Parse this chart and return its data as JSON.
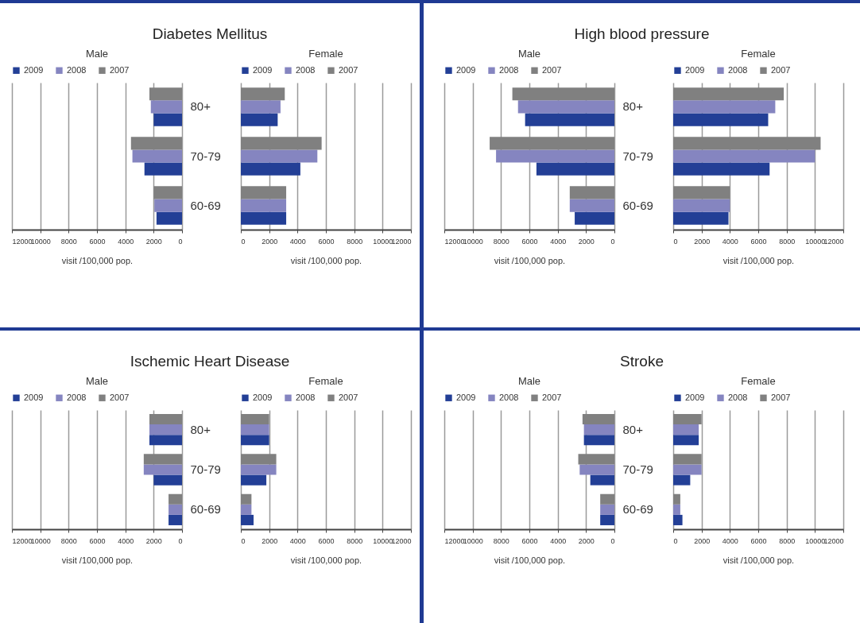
{
  "chart_data": [
    {
      "type": "bar",
      "orientation": "horizontal",
      "title": "Diabetes Mellitus",
      "subtitle": "Male",
      "xlabel": "visit /100,000 pop.",
      "categories": [
        "80+",
        "70-79",
        "60-69"
      ],
      "xlim": [
        12000,
        0
      ],
      "xticks": [
        12000,
        10000,
        8000,
        6000,
        4000,
        2000,
        0
      ],
      "grid": "x",
      "legend": "top",
      "series": [
        {
          "name": "2009",
          "color": "#233f96",
          "values": [
            2000,
            2650,
            1800
          ]
        },
        {
          "name": "2008",
          "color": "#8585c0",
          "values": [
            2200,
            3500,
            1950
          ]
        },
        {
          "name": "2007",
          "color": "#808080",
          "values": [
            2300,
            3600,
            2000
          ]
        }
      ]
    },
    {
      "type": "bar",
      "orientation": "horizontal",
      "subtitle": "Female",
      "xlabel": "visit /100,000 pop.",
      "categories": [
        null,
        null,
        null
      ],
      "xlim": [
        0,
        12000
      ],
      "xticks": [
        0,
        2000,
        4000,
        6000,
        8000,
        10000,
        12000
      ],
      "grid": "x",
      "legend": "top",
      "tick_labels": "x",
      "series": [
        {
          "name": "2009",
          "color": "#233f96",
          "values": [
            2600,
            4200,
            3200
          ]
        },
        {
          "name": "2008",
          "color": "#8585c0",
          "values": [
            2800,
            5400,
            3200
          ]
        },
        {
          "name": "2007",
          "color": "#808080",
          "values": [
            3100,
            5700,
            3200
          ]
        }
      ]
    },
    {
      "type": "bar",
      "orientation": "horizontal",
      "title": "High blood pressure",
      "subtitle": "Male",
      "xlabel": "visit /100,000 pop.",
      "categories": [
        "80+",
        "70-79",
        "60-69"
      ],
      "xlim": [
        12000,
        0
      ],
      "xticks": [
        12000,
        10000,
        8000,
        6000,
        4000,
        2000,
        0
      ],
      "grid": "x",
      "legend": "top",
      "series": [
        {
          "name": "2009",
          "color": "#233f96",
          "values": [
            6300,
            5500,
            2800
          ]
        },
        {
          "name": "2008",
          "color": "#8585c0",
          "values": [
            6800,
            8350,
            3150
          ]
        },
        {
          "name": "2007",
          "color": "#808080",
          "values": [
            7200,
            8800,
            3150
          ]
        }
      ]
    },
    {
      "type": "bar",
      "orientation": "horizontal",
      "subtitle": "Female",
      "xlabel": "visit /100,000 pop.",
      "categories": [
        null,
        null,
        null
      ],
      "xlim": [
        0,
        12000
      ],
      "xticks": [
        0,
        2000,
        4000,
        6000,
        8000,
        10000,
        12000
      ],
      "grid": "x",
      "legend": "top",
      "tick_labels": "x",
      "series": [
        {
          "name": "2009",
          "color": "#233f96",
          "values": [
            6700,
            6800,
            3900
          ]
        },
        {
          "name": "2008",
          "color": "#8585c0",
          "values": [
            7200,
            10000,
            4000
          ]
        },
        {
          "name": "2007",
          "color": "#808080",
          "values": [
            7800,
            10400,
            4000
          ]
        }
      ]
    },
    {
      "type": "bar",
      "orientation": "horizontal",
      "title": "Ischemic Heart Disease",
      "subtitle": "Male",
      "xlabel": "visit /100,000 pop.",
      "categories": [
        "80+",
        "70-79",
        "60-69"
      ],
      "xlim": [
        12000,
        0
      ],
      "xticks": [
        12000,
        10000,
        8000,
        6000,
        4000,
        2000,
        0
      ],
      "grid": "x",
      "legend": "top",
      "series": [
        {
          "name": "2009",
          "color": "#233f96",
          "values": [
            2300,
            2000,
            950
          ]
        },
        {
          "name": "2008",
          "color": "#8585c0",
          "values": [
            2300,
            2700,
            950
          ]
        },
        {
          "name": "2007",
          "color": "#808080",
          "values": [
            2300,
            2700,
            950
          ]
        }
      ]
    },
    {
      "type": "bar",
      "orientation": "horizontal",
      "subtitle": "Female",
      "xlabel": "visit /100,000 pop.",
      "categories": [
        null,
        null,
        null
      ],
      "xlim": [
        0,
        12000
      ],
      "xticks": [
        0,
        2000,
        4000,
        6000,
        8000,
        10000,
        12000
      ],
      "grid": "x",
      "legend": "top",
      "tick_labels": "x",
      "series": [
        {
          "name": "2009",
          "color": "#233f96",
          "values": [
            2000,
            1800,
            900
          ]
        },
        {
          "name": "2008",
          "color": "#8585c0",
          "values": [
            2000,
            2500,
            750
          ]
        },
        {
          "name": "2007",
          "color": "#808080",
          "values": [
            2000,
            2500,
            750
          ]
        }
      ]
    },
    {
      "type": "bar",
      "orientation": "horizontal",
      "title": "Stroke",
      "subtitle": "Male",
      "xlabel": "visit /100,000 pop.",
      "categories": [
        "80+",
        "70-79",
        "60-69"
      ],
      "xlim": [
        12000,
        0
      ],
      "xticks": [
        12000,
        10000,
        8000,
        6000,
        4000,
        2000,
        0
      ],
      "grid": "x",
      "legend": "top",
      "series": [
        {
          "name": "2009",
          "color": "#233f96",
          "values": [
            2150,
            1700,
            1000
          ]
        },
        {
          "name": "2008",
          "color": "#8585c0",
          "values": [
            2150,
            2450,
            1000
          ]
        },
        {
          "name": "2007",
          "color": "#808080",
          "values": [
            2250,
            2550,
            1000
          ]
        }
      ]
    },
    {
      "type": "bar",
      "orientation": "horizontal",
      "subtitle": "Female",
      "xlabel": "visit /100,000 pop.",
      "categories": [
        null,
        null,
        null
      ],
      "xlim": [
        0,
        12000
      ],
      "xticks": [
        0,
        2000,
        4000,
        6000,
        8000,
        10000,
        12000
      ],
      "grid": "x",
      "legend": "top",
      "tick_labels": "x",
      "series": [
        {
          "name": "2009",
          "color": "#233f96",
          "values": [
            1800,
            1200,
            650
          ]
        },
        {
          "name": "2008",
          "color": "#8585c0",
          "values": [
            1800,
            2000,
            500
          ]
        },
        {
          "name": "2007",
          "color": "#808080",
          "values": [
            2000,
            2000,
            500
          ]
        }
      ]
    }
  ]
}
